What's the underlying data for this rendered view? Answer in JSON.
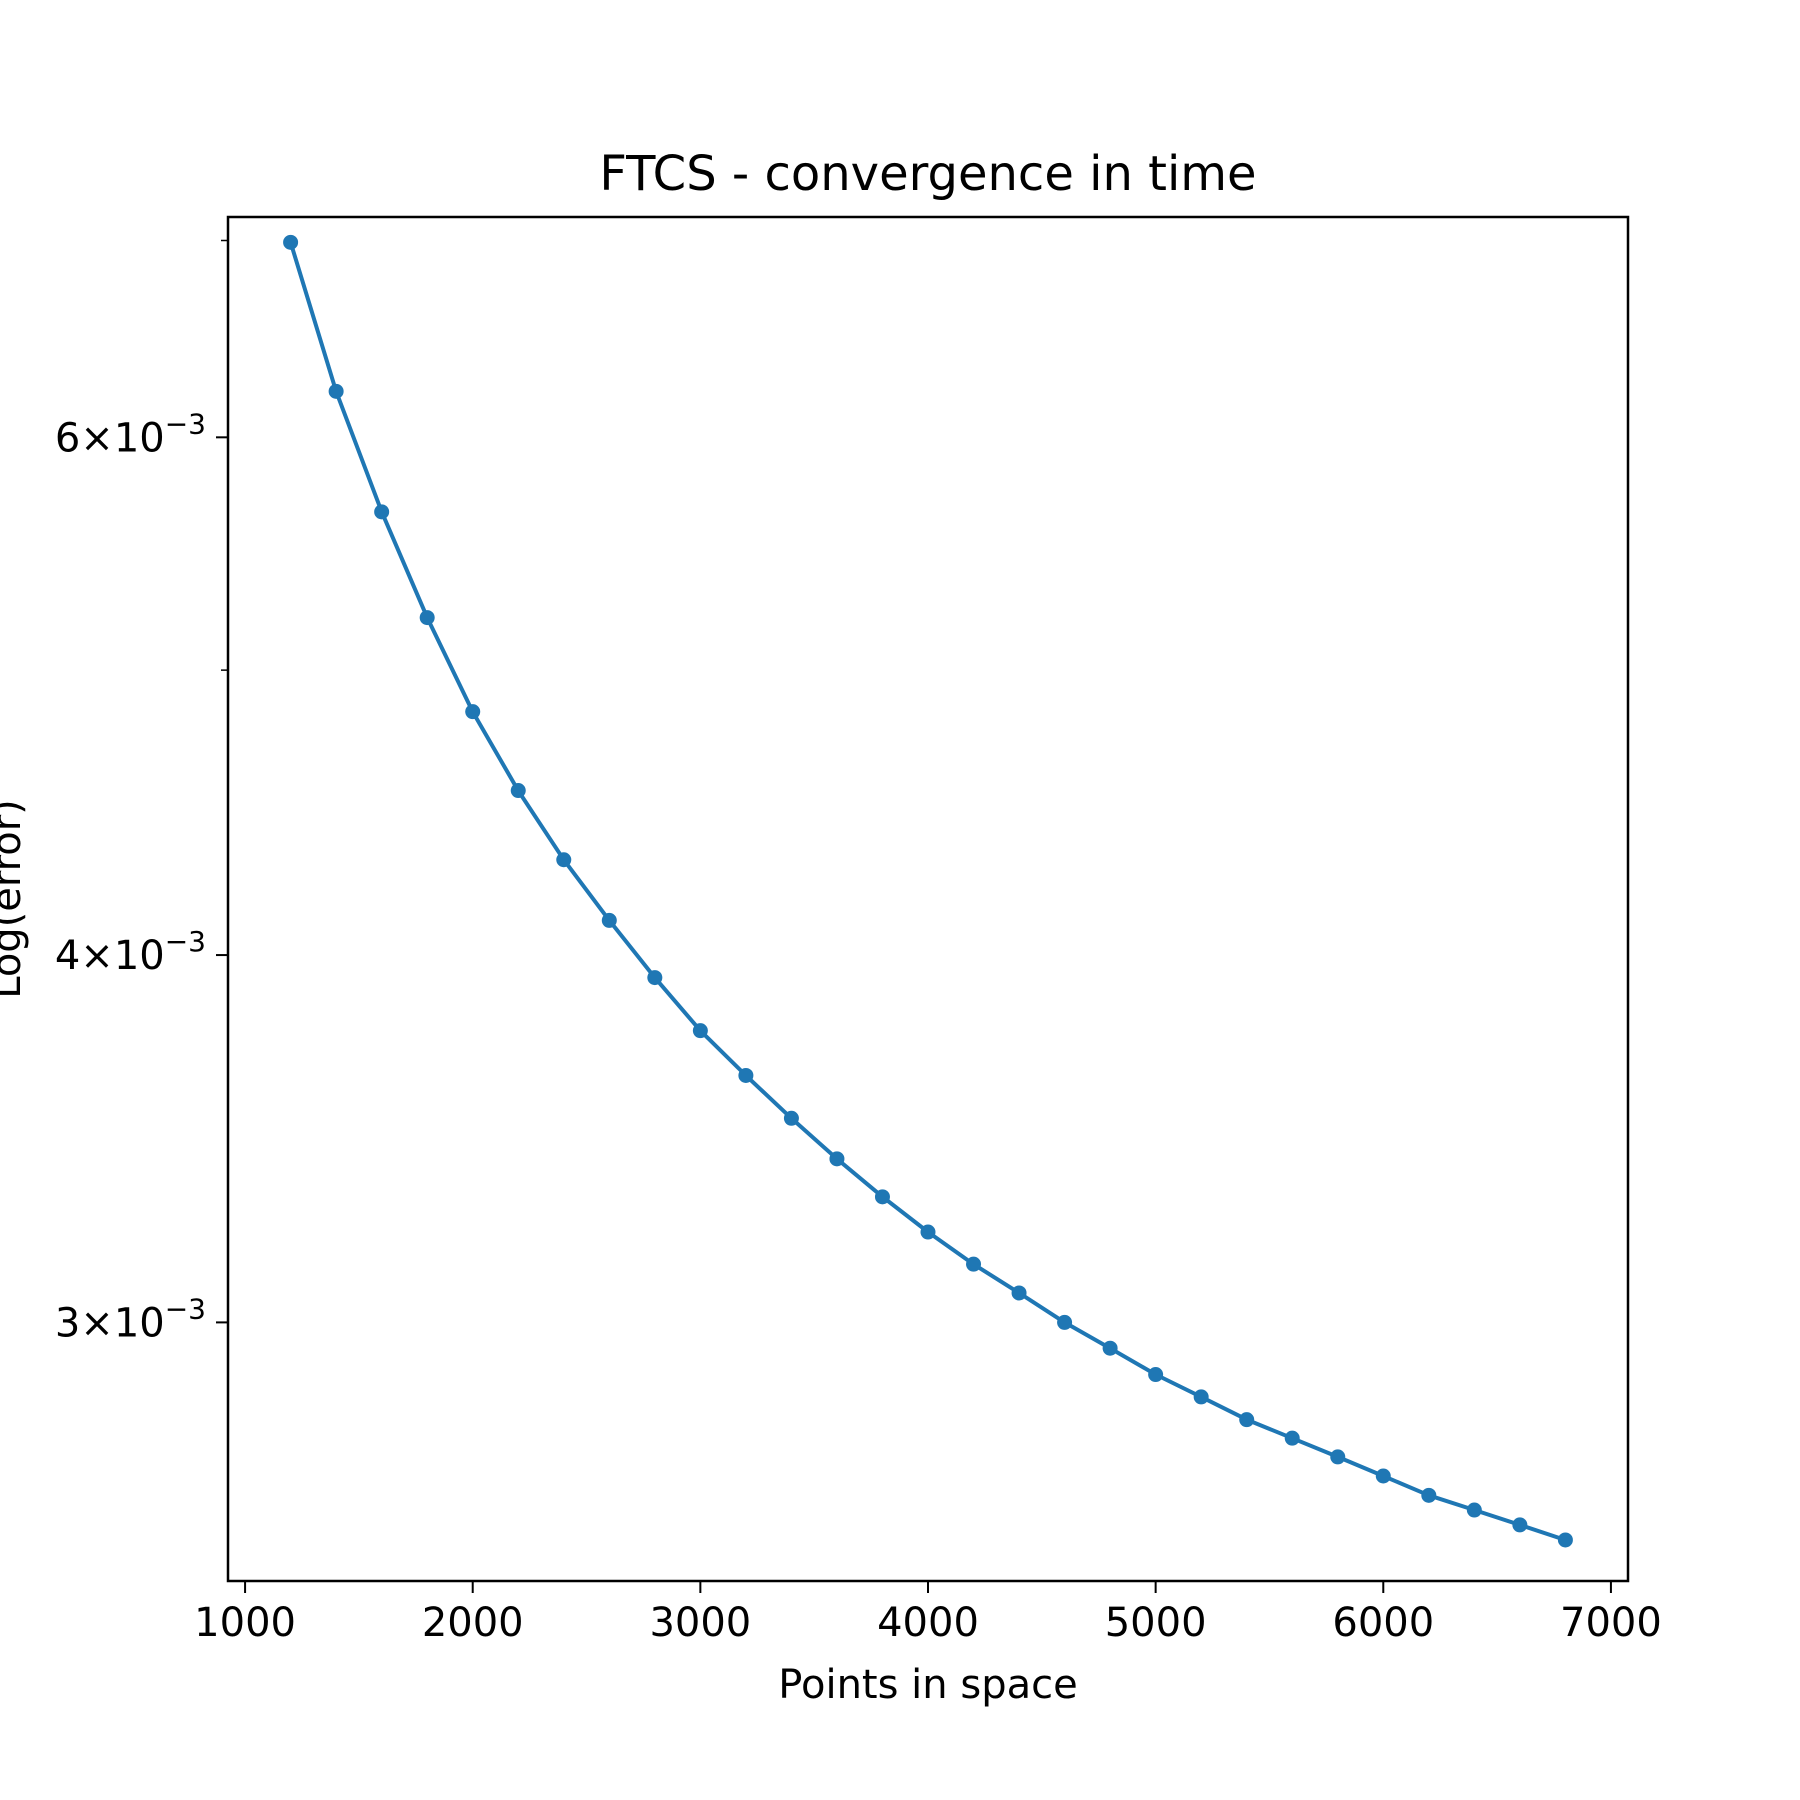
{
  "chart_data": {
    "type": "line",
    "title": "FTCS - convergence in time",
    "xlabel": "Points in space",
    "ylabel": "Log(error)",
    "yscale": "log",
    "grid": false,
    "legend": "none",
    "xlim": [
      925,
      7075
    ],
    "ylim": [
      0.00245,
      0.00713
    ],
    "xticks": [
      {
        "value": 1000,
        "label": "1000"
      },
      {
        "value": 2000,
        "label": "2000"
      },
      {
        "value": 3000,
        "label": "3000"
      },
      {
        "value": 4000,
        "label": "4000"
      },
      {
        "value": 5000,
        "label": "5000"
      },
      {
        "value": 6000,
        "label": "6000"
      },
      {
        "value": 7000,
        "label": "7000"
      }
    ],
    "yticks_major": [
      {
        "value": 0.003,
        "mantissa": "3",
        "exponent": "−3"
      },
      {
        "value": 0.004,
        "mantissa": "4",
        "exponent": "−3"
      },
      {
        "value": 0.006,
        "mantissa": "6",
        "exponent": "−3"
      }
    ],
    "yticks_minor": [
      0.005,
      0.007
    ],
    "series": [
      {
        "color": "#1f77b4",
        "marker": "circle",
        "x": [
          1200,
          1400,
          1600,
          1800,
          2000,
          2200,
          2400,
          2600,
          2800,
          3000,
          3200,
          3400,
          3600,
          3800,
          4000,
          4200,
          4400,
          4600,
          4800,
          5000,
          5200,
          5400,
          5600,
          5800,
          6000,
          6200,
          6400,
          6600,
          6800
        ],
        "y": [
          0.00699,
          0.00622,
          0.00566,
          0.00521,
          0.00484,
          0.00455,
          0.00431,
          0.00411,
          0.00393,
          0.00377,
          0.00364,
          0.00352,
          0.00341,
          0.00331,
          0.00322,
          0.00314,
          0.00307,
          0.003,
          0.00294,
          0.00288,
          0.00283,
          0.00278,
          0.00274,
          0.0027,
          0.00266,
          0.00262,
          0.00259,
          0.00256,
          0.00253
        ]
      }
    ]
  }
}
